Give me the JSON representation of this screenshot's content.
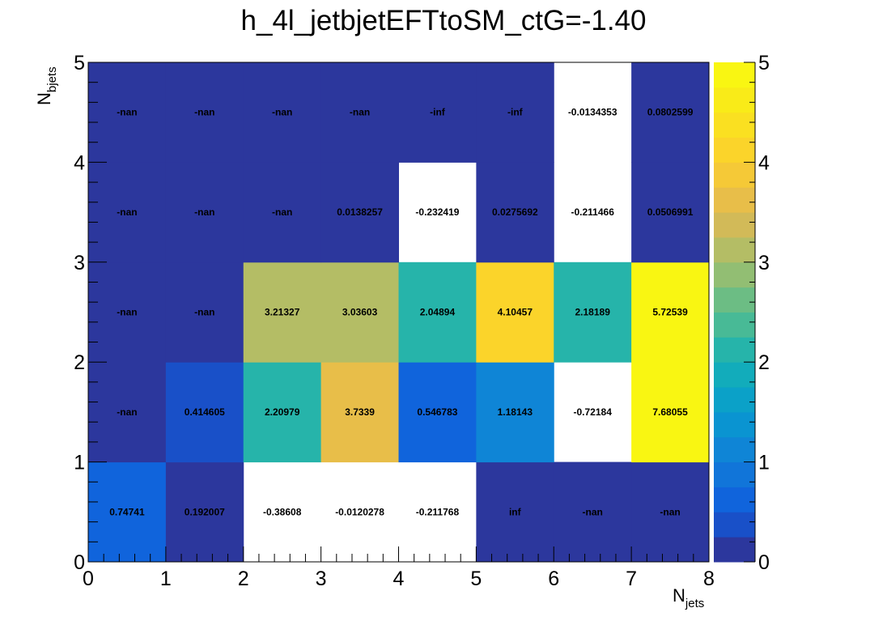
{
  "chart_data": {
    "type": "heatmap",
    "title": "h_4l_jetbjetEFTtoSM_ctG=-1.40",
    "xlabel": "N",
    "xlabel_sub": "jets",
    "ylabel": "N",
    "ylabel_sub": "bjets",
    "x_edges": [
      0,
      1,
      2,
      3,
      4,
      5,
      6,
      7,
      8
    ],
    "y_edges": [
      0,
      1,
      2,
      3,
      4,
      5
    ],
    "xlim": [
      0,
      8
    ],
    "ylim": [
      0,
      5
    ],
    "zlim": [
      0,
      5
    ],
    "x_ticks": [
      "0",
      "1",
      "2",
      "3",
      "4",
      "5",
      "6",
      "7",
      "8"
    ],
    "y_ticks": [
      "0",
      "1",
      "2",
      "3",
      "4",
      "5"
    ],
    "z_ticks": [
      "0",
      "1",
      "2",
      "3",
      "4",
      "5"
    ],
    "palette": "kBird",
    "colorbar_levels": 20,
    "cells": [
      {
        "x": 0,
        "y": 0,
        "value": 0.74741,
        "label": "0.74741"
      },
      {
        "x": 1,
        "y": 0,
        "value": 0.192007,
        "label": "0.192007"
      },
      {
        "x": 2,
        "y": 0,
        "value": -0.38608,
        "label": "-0.38608"
      },
      {
        "x": 3,
        "y": 0,
        "value": -0.0120278,
        "label": "-0.0120278"
      },
      {
        "x": 4,
        "y": 0,
        "value": -0.211768,
        "label": "-0.211768"
      },
      {
        "x": 5,
        "y": 0,
        "value": "inf",
        "label": "inf"
      },
      {
        "x": 6,
        "y": 0,
        "value": "-nan",
        "label": "-nan"
      },
      {
        "x": 7,
        "y": 0,
        "value": "-nan",
        "label": "-nan"
      },
      {
        "x": 0,
        "y": 1,
        "value": "-nan",
        "label": "-nan"
      },
      {
        "x": 1,
        "y": 1,
        "value": 0.414605,
        "label": "0.414605"
      },
      {
        "x": 2,
        "y": 1,
        "value": 2.20979,
        "label": "2.20979"
      },
      {
        "x": 3,
        "y": 1,
        "value": 3.7339,
        "label": "3.7339"
      },
      {
        "x": 4,
        "y": 1,
        "value": 0.546783,
        "label": "0.546783"
      },
      {
        "x": 5,
        "y": 1,
        "value": 1.18143,
        "label": "1.18143"
      },
      {
        "x": 6,
        "y": 1,
        "value": -0.72184,
        "label": "-0.72184"
      },
      {
        "x": 7,
        "y": 1,
        "value": 7.68055,
        "label": "7.68055"
      },
      {
        "x": 0,
        "y": 2,
        "value": "-nan",
        "label": "-nan"
      },
      {
        "x": 1,
        "y": 2,
        "value": "-nan",
        "label": "-nan"
      },
      {
        "x": 2,
        "y": 2,
        "value": 3.21327,
        "label": "3.21327"
      },
      {
        "x": 3,
        "y": 2,
        "value": 3.03603,
        "label": "3.03603"
      },
      {
        "x": 4,
        "y": 2,
        "value": 2.04894,
        "label": "2.04894"
      },
      {
        "x": 5,
        "y": 2,
        "value": 4.10457,
        "label": "4.10457"
      },
      {
        "x": 6,
        "y": 2,
        "value": 2.18189,
        "label": "2.18189"
      },
      {
        "x": 7,
        "y": 2,
        "value": 5.72539,
        "label": "5.72539"
      },
      {
        "x": 0,
        "y": 3,
        "value": "-nan",
        "label": "-nan"
      },
      {
        "x": 1,
        "y": 3,
        "value": "-nan",
        "label": "-nan"
      },
      {
        "x": 2,
        "y": 3,
        "value": "-nan",
        "label": "-nan"
      },
      {
        "x": 3,
        "y": 3,
        "value": 0.0138257,
        "label": "0.0138257"
      },
      {
        "x": 4,
        "y": 3,
        "value": -0.232419,
        "label": "-0.232419"
      },
      {
        "x": 5,
        "y": 3,
        "value": 0.0275692,
        "label": "0.0275692"
      },
      {
        "x": 6,
        "y": 3,
        "value": -0.211466,
        "label": "-0.211466"
      },
      {
        "x": 7,
        "y": 3,
        "value": 0.0506991,
        "label": "0.0506991"
      },
      {
        "x": 0,
        "y": 4,
        "value": "-nan",
        "label": "-nan"
      },
      {
        "x": 1,
        "y": 4,
        "value": "-nan",
        "label": "-nan"
      },
      {
        "x": 2,
        "y": 4,
        "value": "-nan",
        "label": "-nan"
      },
      {
        "x": 3,
        "y": 4,
        "value": "-nan",
        "label": "-nan"
      },
      {
        "x": 4,
        "y": 4,
        "value": "-inf",
        "label": "-inf"
      },
      {
        "x": 5,
        "y": 4,
        "value": "-inf",
        "label": "-inf"
      },
      {
        "x": 6,
        "y": 4,
        "value": -0.0134353,
        "label": "-0.0134353"
      },
      {
        "x": 7,
        "y": 4,
        "value": 0.0802599,
        "label": "0.0802599"
      }
    ]
  }
}
